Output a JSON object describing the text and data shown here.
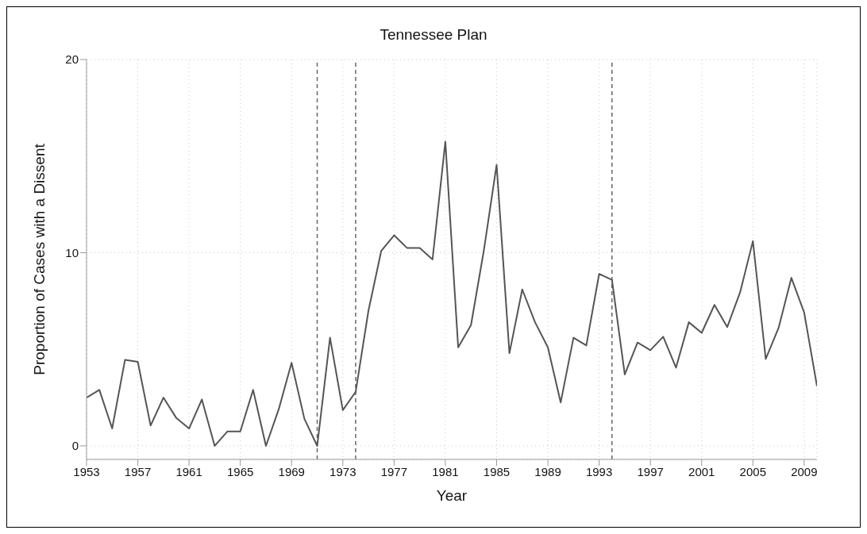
{
  "chart_data": {
    "type": "line",
    "title": "Tennessee Plan",
    "xlabel": "Year",
    "ylabel": "Proportion of Cases with a Dissent",
    "x": [
      1953,
      1954,
      1955,
      1956,
      1957,
      1958,
      1959,
      1960,
      1961,
      1962,
      1963,
      1964,
      1965,
      1966,
      1967,
      1968,
      1969,
      1970,
      1971,
      1972,
      1973,
      1974,
      1975,
      1976,
      1977,
      1978,
      1979,
      1980,
      1981,
      1982,
      1983,
      1984,
      1985,
      1986,
      1987,
      1988,
      1989,
      1990,
      1991,
      1992,
      1993,
      1994,
      1995,
      1996,
      1997,
      1998,
      1999,
      2000,
      2001,
      2002,
      2003,
      2004,
      2005,
      2006,
      2007,
      2008,
      2009,
      2010
    ],
    "series": [
      {
        "color": "#555555",
        "values": [
          2.5,
          2.9,
          0.9,
          4.45,
          4.35,
          1.05,
          2.5,
          1.45,
          0.9,
          2.4,
          0,
          0.75,
          0.75,
          2.9,
          0,
          1.9,
          4.3,
          1.4,
          0,
          5.6,
          1.85,
          2.8,
          7.0,
          10.1,
          10.9,
          10.25,
          10.25,
          9.65,
          15.75,
          5.1,
          6.25,
          10.1,
          14.55,
          4.8,
          8.1,
          6.4,
          5.1,
          2.25,
          5.6,
          5.2,
          8.9,
          8.6,
          3.7,
          5.35,
          4.95,
          5.65,
          4.05,
          6.4,
          5.85,
          7.3,
          6.15,
          7.95,
          10.6,
          4.5,
          6.1,
          8.7,
          6.9,
          3.1
        ]
      }
    ],
    "xlim": [
      1953,
      2010
    ],
    "xticks": [
      1953,
      1957,
      1961,
      1965,
      1969,
      1973,
      1977,
      1981,
      1985,
      1989,
      1993,
      1997,
      2001,
      2005,
      2009
    ],
    "ylim": [
      -0.7,
      20
    ],
    "yticks": [
      0,
      10,
      20
    ],
    "grid": true,
    "marker": "none",
    "line_style": "solid",
    "ref_lines": [
      {
        "axis": "x",
        "value": 1971,
        "color": "#666666",
        "line_style": "dashed"
      },
      {
        "axis": "x",
        "value": 1974,
        "color": "#666666",
        "line_style": "dashed"
      },
      {
        "axis": "x",
        "value": 1994,
        "color": "#666666",
        "line_style": "dashed"
      }
    ]
  }
}
